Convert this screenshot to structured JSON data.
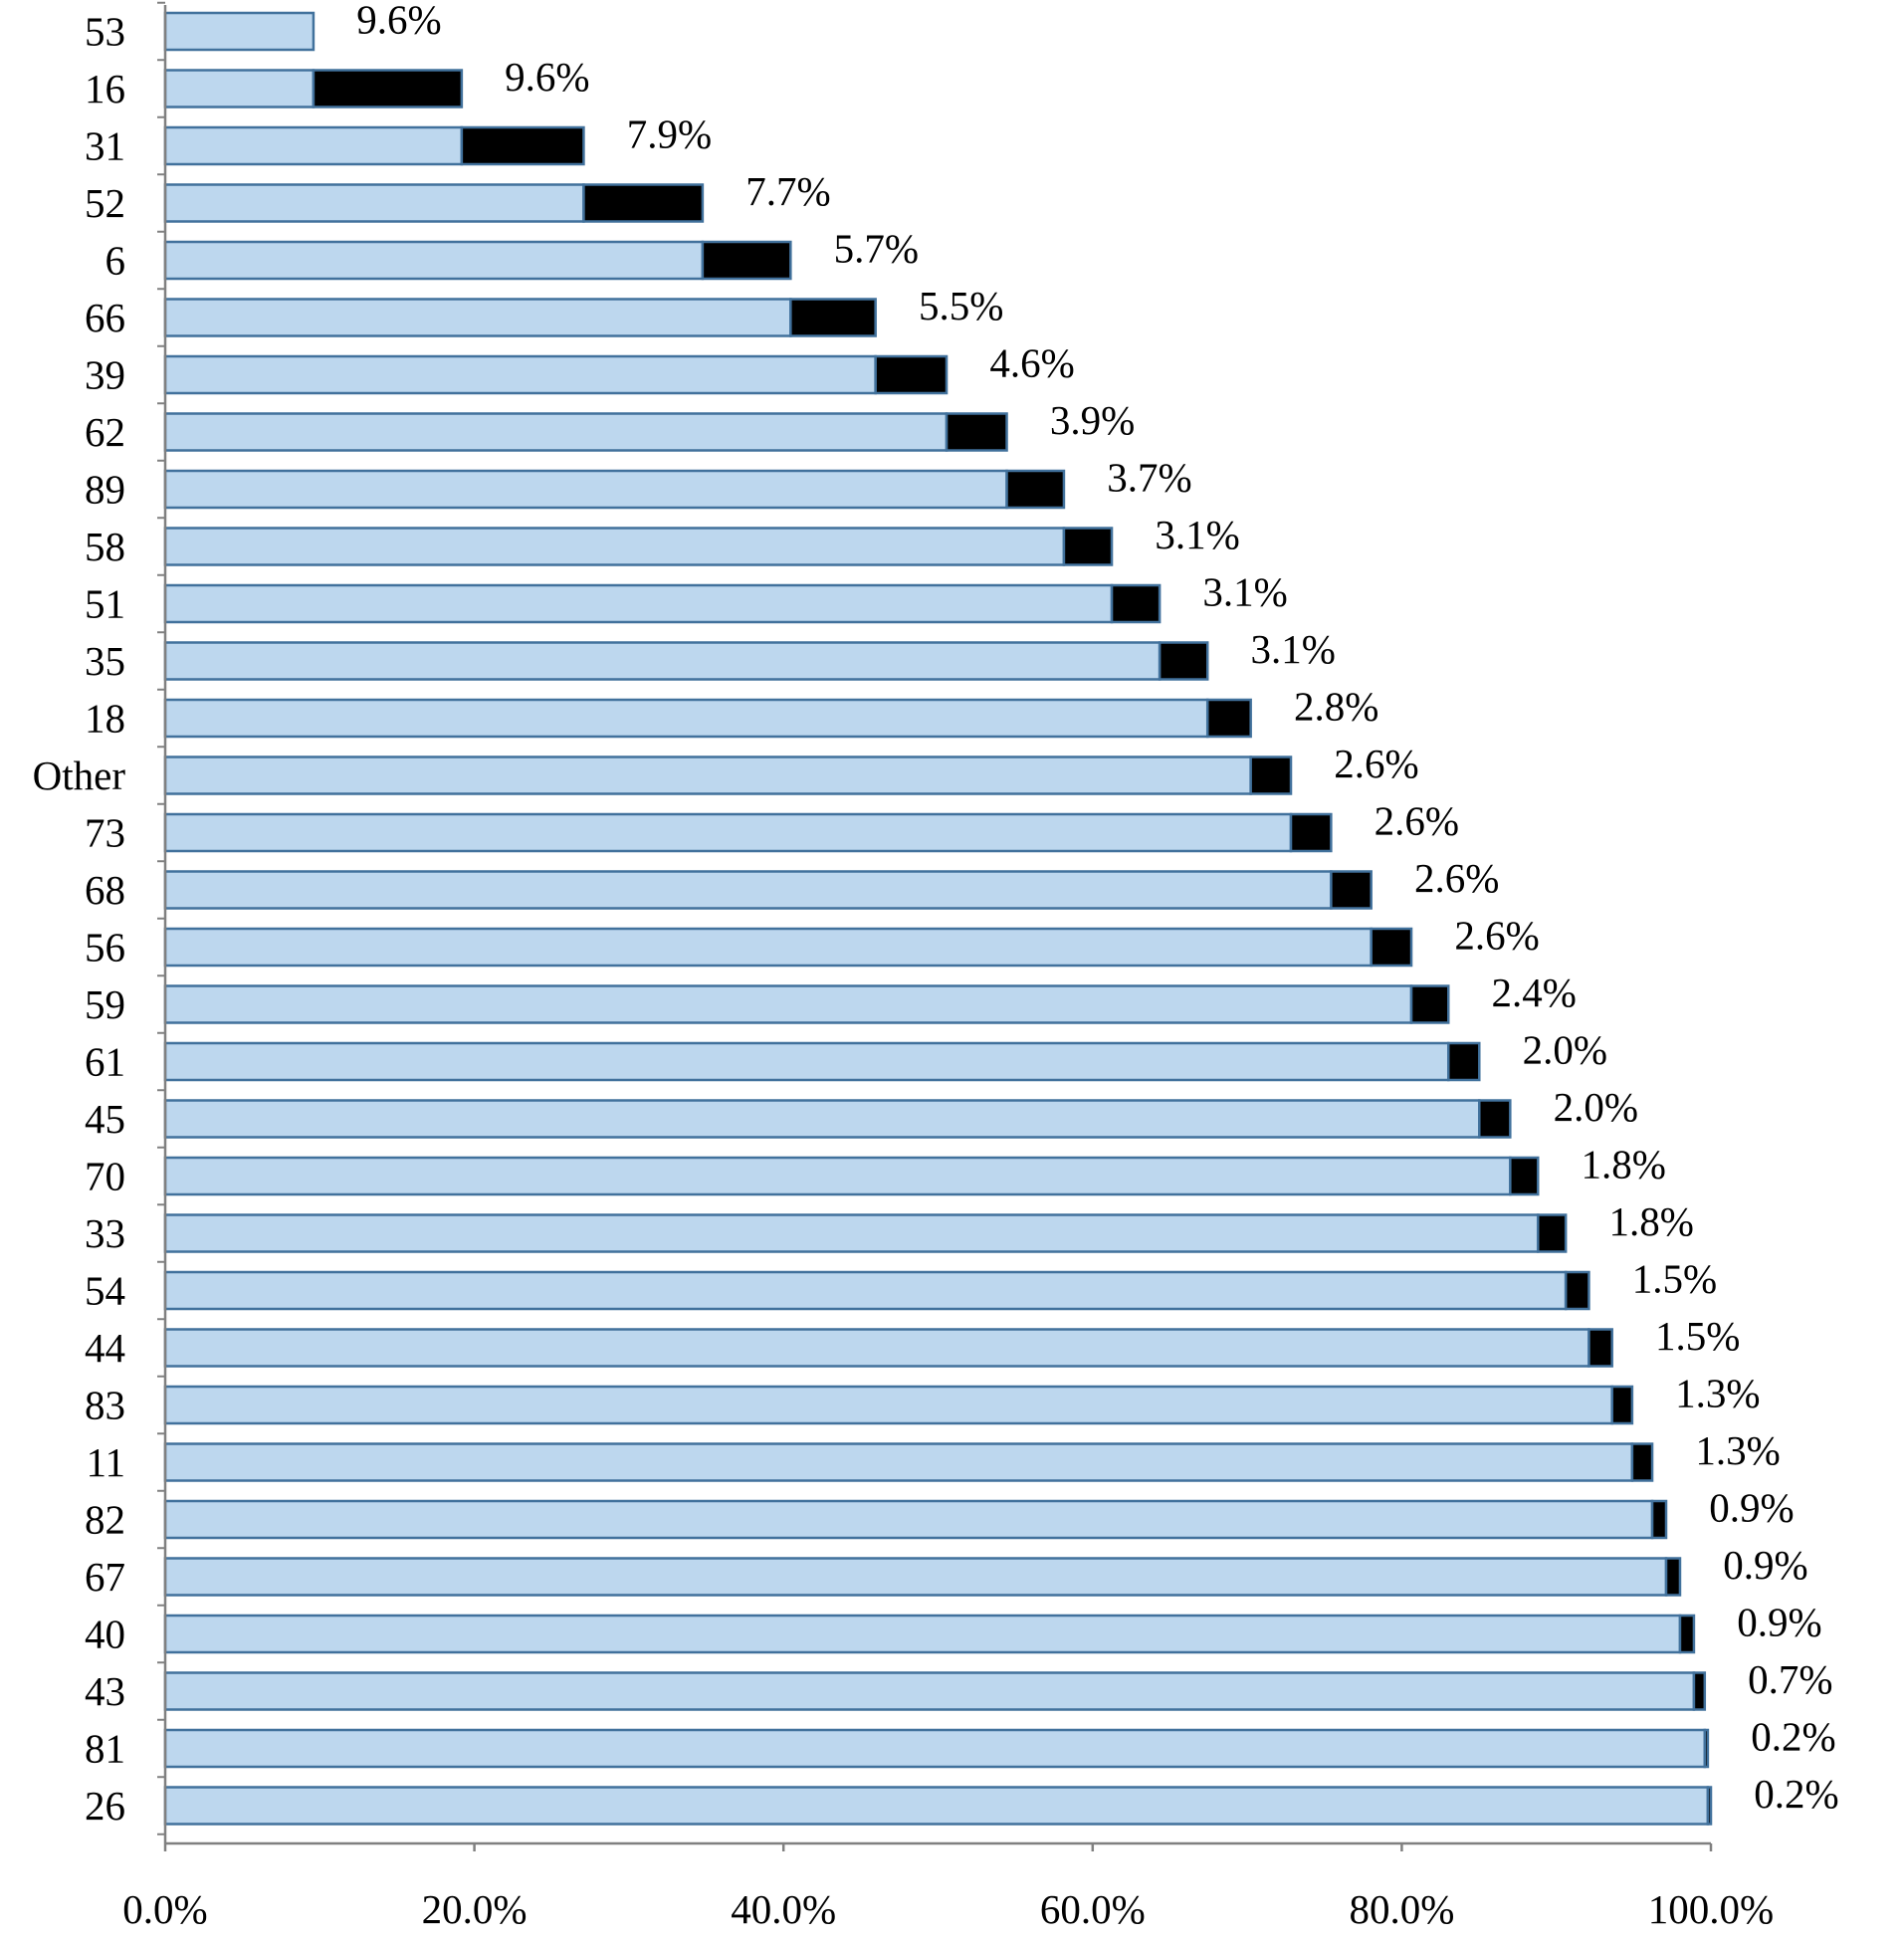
{
  "chart_data": {
    "type": "bar",
    "orientation": "horizontal",
    "stacked": true,
    "description": "Cumulative share bars: light segment = cumulative share of preceding categories, dark segment = this category's share.",
    "categories": [
      "53",
      "16",
      "31",
      "52",
      "6",
      "66",
      "39",
      "62",
      "89",
      "58",
      "51",
      "35",
      "18",
      "Other",
      "73",
      "68",
      "56",
      "59",
      "61",
      "45",
      "70",
      "33",
      "54",
      "44",
      "83",
      "11",
      "82",
      "67",
      "40",
      "43",
      "81",
      "26"
    ],
    "series": [
      {
        "values": [
          9.6,
          9.6,
          7.9,
          7.7,
          5.7,
          5.5,
          4.6,
          3.9,
          3.7,
          3.1,
          3.1,
          3.1,
          2.8,
          2.6,
          2.6,
          2.6,
          2.6,
          2.4,
          2.0,
          2.0,
          1.8,
          1.8,
          1.5,
          1.5,
          1.3,
          1.3,
          0.9,
          0.9,
          0.9,
          0.7,
          0.2,
          0.2
        ]
      }
    ],
    "data_labels": [
      "9.6%",
      "9.6%",
      "7.9%",
      "7.7%",
      "5.7%",
      "5.5%",
      "4.6%",
      "3.9%",
      "3.7%",
      "3.1%",
      "3.1%",
      "3.1%",
      "2.8%",
      "2.6%",
      "2.6%",
      "2.6%",
      "2.6%",
      "2.4%",
      "2.0%",
      "2.0%",
      "1.8%",
      "1.8%",
      "1.5%",
      "1.5%",
      "1.3%",
      "1.3%",
      "0.9%",
      "0.9%",
      "0.9%",
      "0.7%",
      "0.2%",
      "0.2%"
    ],
    "x_tick_labels": [
      "0.0%",
      "20.0%",
      "40.0%",
      "60.0%",
      "80.0%",
      "100.0%"
    ],
    "xlim": [
      0,
      100
    ],
    "grid": false,
    "legend": "none",
    "title": "",
    "xlabel": "",
    "ylabel": "",
    "colors": {
      "cumulative_fill": "#bdd7ee",
      "cumulative_stroke": "#41719c",
      "segment_fill": "#000000",
      "axis": "#808080"
    }
  }
}
